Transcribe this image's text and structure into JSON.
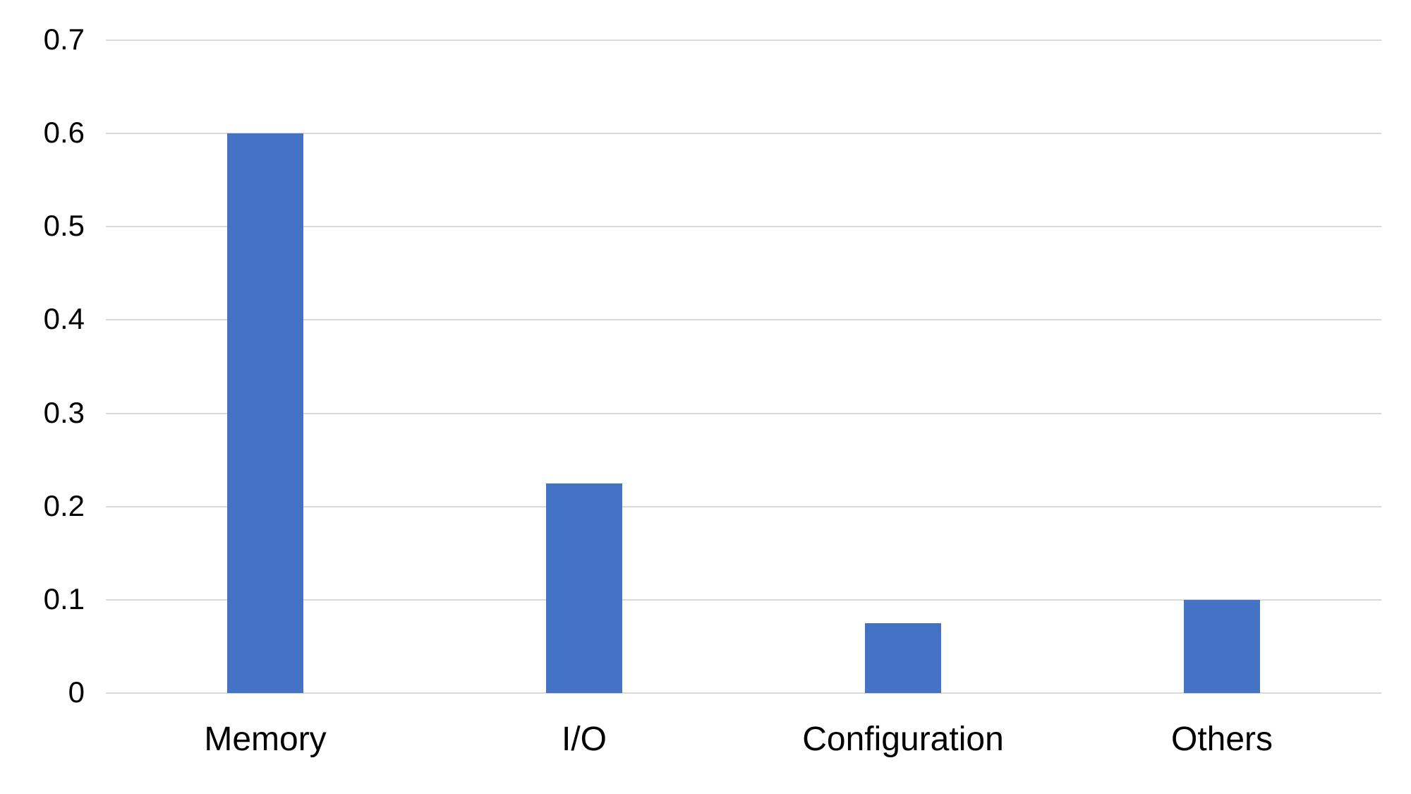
{
  "chart_data": {
    "type": "bar",
    "categories": [
      "Memory",
      "I/O",
      "Configuration",
      "Others"
    ],
    "values": [
      0.6,
      0.225,
      0.075,
      0.1
    ],
    "title": "",
    "xlabel": "",
    "ylabel": "",
    "ylim": [
      0,
      0.7
    ],
    "yticks": [
      "0",
      "0.1",
      "0.2",
      "0.3",
      "0.4",
      "0.5",
      "0.6",
      "0.7"
    ],
    "grid": true,
    "legend": false,
    "bar_color": "#4472C4",
    "gridline_color": "#D9D9D9",
    "background_color": "#FFFFFF",
    "text_color": "#000000"
  }
}
